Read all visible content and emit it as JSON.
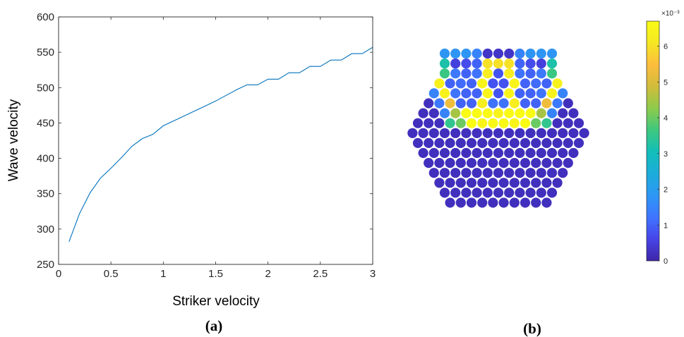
{
  "chart_data": [
    {
      "type": "line",
      "panel_label": "(a)",
      "xlabel": "Striker velocity",
      "ylabel": "Wave velocity",
      "xlim": [
        0,
        3
      ],
      "ylim": [
        250,
        600
      ],
      "xticks": [
        0,
        0.5,
        1,
        1.5,
        2,
        2.5,
        3
      ],
      "xtick_labels": [
        "0",
        "0.5",
        "1",
        "1.5",
        "2",
        "2.5",
        "3"
      ],
      "yticks": [
        250,
        300,
        350,
        400,
        450,
        500,
        550,
        600
      ],
      "ytick_labels": [
        "250",
        "300",
        "350",
        "400",
        "450",
        "500",
        "550",
        "600"
      ],
      "grid": false,
      "series": [
        {
          "color": "#0072BD",
          "x": [
            0.1,
            0.2,
            0.3,
            0.4,
            0.5,
            0.6,
            0.7,
            0.8,
            0.9,
            1.0,
            1.1,
            1.2,
            1.3,
            1.4,
            1.5,
            1.6,
            1.7,
            1.8,
            1.9,
            2.0,
            2.1,
            2.2,
            2.3,
            2.4,
            2.5,
            2.6,
            2.7,
            2.8,
            2.9,
            3.0
          ],
          "y": [
            282,
            322,
            351,
            372,
            386,
            401,
            417,
            428,
            434,
            446,
            453,
            460,
            467,
            474,
            481,
            489,
            497,
            504,
            504,
            512,
            512,
            521,
            521,
            530,
            530,
            539,
            539,
            548,
            548,
            557
          ]
        }
      ]
    },
    {
      "type": "heatmap",
      "panel_label": "(b)",
      "colorbar": {
        "exponent_label": "×10⁻³",
        "min": 0,
        "max": 6.7,
        "ticks": [
          0,
          1,
          2,
          3,
          4,
          5,
          6
        ],
        "tick_labels": [
          "0",
          "1",
          "2",
          "3",
          "4",
          "5",
          "6"
        ]
      },
      "colormap": [
        "#3E26A8",
        "#4744E8",
        "#3F74FF",
        "#2D97F4",
        "#1CACDB",
        "#12BEB9",
        "#3EC87F",
        "#8DCB4B",
        "#D1BC3B",
        "#FCBD3D",
        "#F5E723",
        "#F9FB15"
      ],
      "rows": [
        [
          1.8,
          1.8,
          1.8,
          1.5,
          0.3,
          0.3,
          0.3,
          1.5,
          1.8,
          1.8,
          1.8
        ],
        [
          3.2,
          0.5,
          0.7,
          1.0,
          6.0,
          6.0,
          6.0,
          1.0,
          0.7,
          0.5,
          3.2
        ],
        [
          3.6,
          1.3,
          1.0,
          1.2,
          6.3,
          0.8,
          6.3,
          1.2,
          1.0,
          1.3,
          3.6
        ],
        [
          6.4,
          1.0,
          1.1,
          1.0,
          6.5,
          0.8,
          0.8,
          6.5,
          1.0,
          1.1,
          1.0,
          6.4
        ],
        [
          1.5,
          6.4,
          1.2,
          1.0,
          1.0,
          6.5,
          0.8,
          6.5,
          1.0,
          1.0,
          1.2,
          6.4,
          1.5
        ],
        [
          0.2,
          1.3,
          5.3,
          1.0,
          1.0,
          6.3,
          1.2,
          1.2,
          6.3,
          1.0,
          1.0,
          5.3,
          1.3,
          0.2
        ],
        [
          0.2,
          0.2,
          1.5,
          4.5,
          6.8,
          6.8,
          6.7,
          6.5,
          6.7,
          6.8,
          6.8,
          4.5,
          1.5,
          0.2,
          0.2
        ],
        [
          0.2,
          0.2,
          0.2,
          3.5,
          4.0,
          6.8,
          6.5,
          6.6,
          6.6,
          6.5,
          6.8,
          4.0,
          3.5,
          0.2,
          0.2,
          0.2
        ],
        [
          0.2,
          0.2,
          0.2,
          0.2,
          0.2,
          0.2,
          0.2,
          0.2,
          0.2,
          0.2,
          0.2,
          0.2,
          0.2,
          0.2,
          0.2,
          0.2,
          0.2
        ],
        [
          0.2,
          0.2,
          0.2,
          0.2,
          0.2,
          0.2,
          0.2,
          0.2,
          0.2,
          0.2,
          0.2,
          0.2,
          0.2,
          0.2,
          0.2,
          0.2
        ],
        [
          0.2,
          0.2,
          0.2,
          0.2,
          0.2,
          0.2,
          0.2,
          0.2,
          0.2,
          0.2,
          0.2,
          0.2,
          0.2,
          0.2,
          0.2
        ],
        [
          0.2,
          0.2,
          0.2,
          0.2,
          0.2,
          0.2,
          0.2,
          0.2,
          0.2,
          0.2,
          0.2,
          0.2,
          0.2,
          0.2
        ],
        [
          0.2,
          0.2,
          0.2,
          0.2,
          0.2,
          0.2,
          0.2,
          0.2,
          0.2,
          0.2,
          0.2,
          0.2,
          0.2
        ],
        [
          0.2,
          0.2,
          0.2,
          0.2,
          0.2,
          0.2,
          0.2,
          0.2,
          0.2,
          0.2,
          0.2,
          0.2
        ],
        [
          0.2,
          0.2,
          0.2,
          0.2,
          0.2,
          0.2,
          0.2,
          0.2,
          0.2,
          0.2,
          0.2
        ],
        [
          0.2,
          0.2,
          0.2,
          0.2,
          0.2,
          0.2,
          0.2,
          0.2,
          0.2,
          0.2
        ]
      ]
    }
  ]
}
